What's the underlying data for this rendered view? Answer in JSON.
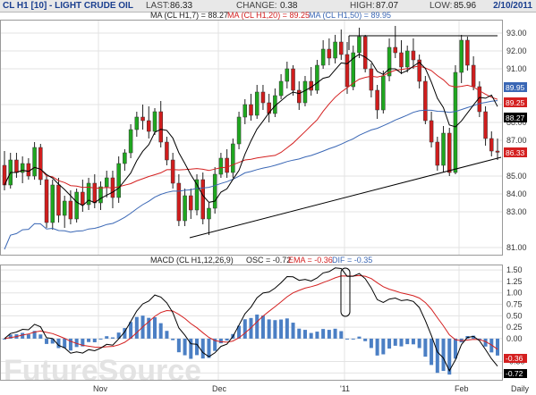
{
  "header": {
    "title": "CL H1 [10] - LIGHT CRUDE OIL",
    "last_label": "LAST:",
    "last_value": "86.33",
    "change_label": "CHANGE:",
    "change_value": "0.38",
    "high_label": "HIGH:",
    "high_value": "87.07",
    "low_label": "LOW:",
    "low_value": "85.96",
    "date": "2/10/2011"
  },
  "legend": {
    "ma7": "MA (CL H1,7) = 88.27",
    "ma20": "MA (CL H1,20) = 89.25",
    "ma50": "MA (CL H1,50) = 89.95"
  },
  "macd_legend": {
    "macd": "MACD (CL H1,12,26,9)",
    "osc": "OSC = -0.72",
    "ema": "EMA = -0.36",
    "dif": "DIF = -0.35"
  },
  "x_labels": [
    "Nov",
    "Dec",
    "'11",
    "Feb",
    "Daily"
  ],
  "price_ticks": [
    "93.00",
    "92.00",
    "91.00",
    "89.00",
    "88.00",
    "87.00",
    "85.00",
    "84.00",
    "83.00",
    "81.00"
  ],
  "macd_ticks": [
    "1.50",
    "1.25",
    "1.00",
    "0.75",
    "0.50",
    "0.25",
    "0.00",
    "-0.50",
    "-0.75"
  ],
  "tags": {
    "ma50": "89.95",
    "ma20": "89.25",
    "ma7": "88.27",
    "last": "86.33",
    "ema": "-0.36",
    "osc": "-0.72"
  },
  "colors": {
    "up": "#1fa71f",
    "down": "#d01d1d",
    "ma7": "#000000",
    "ma20": "#d42020",
    "ma50": "#3a67b5",
    "histogram": "#4b7fc4",
    "header_bg": "#e8e8e8"
  },
  "watermark": "FutureSource",
  "chart_data": [
    {
      "type": "candlestick",
      "title": "CL H1 [10] - LIGHT CRUDE OIL",
      "ylim": [
        80.6,
        93.7
      ],
      "x_labels": [
        "Nov",
        "Dec",
        "'11",
        "Feb"
      ],
      "series": [
        {
          "name": "MA (CL H1,7)",
          "last": 88.27
        },
        {
          "name": "MA (CL H1,20)",
          "last": 89.25
        },
        {
          "name": "MA (CL H1,50)",
          "last": 89.95
        }
      ],
      "ohlc_approx": [
        [
          85.6,
          86.4,
          84.2,
          84.5
        ],
        [
          84.5,
          86.3,
          84.3,
          85.9
        ],
        [
          85.9,
          86.3,
          84.9,
          85.2
        ],
        [
          85.2,
          86.1,
          84.6,
          85.7
        ],
        [
          85.7,
          86.0,
          84.8,
          85.0
        ],
        [
          85.0,
          86.9,
          84.8,
          86.6
        ],
        [
          86.6,
          86.8,
          84.5,
          84.8
        ],
        [
          84.8,
          85.0,
          82.1,
          82.4
        ],
        [
          82.4,
          84.8,
          82.0,
          84.5
        ],
        [
          84.5,
          84.9,
          82.4,
          82.8
        ],
        [
          82.8,
          83.9,
          82.1,
          83.6
        ],
        [
          83.6,
          84.2,
          82.3,
          82.6
        ],
        [
          82.6,
          84.3,
          82.4,
          84.1
        ],
        [
          84.1,
          84.8,
          83.0,
          83.4
        ],
        [
          83.4,
          84.9,
          83.1,
          84.6
        ],
        [
          84.6,
          85.1,
          83.2,
          83.5
        ],
        [
          83.5,
          84.7,
          83.1,
          84.4
        ],
        [
          84.4,
          85.3,
          83.8,
          84.9
        ],
        [
          84.9,
          85.3,
          83.2,
          83.8
        ],
        [
          83.8,
          86.1,
          83.5,
          85.7
        ],
        [
          85.7,
          86.5,
          85.3,
          86.3
        ],
        [
          86.3,
          87.9,
          86.0,
          87.6
        ],
        [
          87.6,
          88.6,
          87.2,
          88.3
        ],
        [
          88.3,
          89.0,
          87.6,
          88.1
        ],
        [
          88.1,
          88.9,
          87.1,
          87.5
        ],
        [
          87.5,
          88.8,
          87.3,
          88.6
        ],
        [
          88.6,
          89.2,
          86.6,
          86.9
        ],
        [
          86.9,
          87.2,
          85.6,
          85.9
        ],
        [
          85.9,
          86.3,
          84.3,
          84.6
        ],
        [
          84.6,
          85.1,
          82.2,
          82.5
        ],
        [
          82.5,
          84.3,
          82.2,
          83.9
        ],
        [
          83.9,
          84.3,
          82.6,
          83.1
        ],
        [
          83.1,
          85.1,
          82.8,
          84.8
        ],
        [
          84.8,
          85.2,
          82.3,
          82.6
        ],
        [
          82.6,
          83.5,
          81.7,
          83.2
        ],
        [
          83.2,
          85.5,
          82.9,
          85.1
        ],
        [
          85.1,
          86.3,
          84.9,
          86.0
        ],
        [
          86.0,
          86.5,
          84.9,
          85.2
        ],
        [
          85.2,
          87.1,
          84.9,
          86.8
        ],
        [
          86.8,
          88.6,
          86.5,
          88.3
        ],
        [
          88.3,
          89.3,
          87.9,
          89.0
        ],
        [
          89.0,
          89.6,
          88.1,
          88.4
        ],
        [
          88.4,
          90.1,
          88.2,
          89.7
        ],
        [
          89.7,
          90.1,
          88.7,
          89.1
        ],
        [
          89.1,
          89.6,
          88.0,
          88.5
        ],
        [
          88.5,
          89.9,
          88.3,
          89.5
        ],
        [
          89.5,
          90.7,
          89.3,
          90.3
        ],
        [
          90.3,
          91.4,
          89.9,
          91.0
        ],
        [
          91.0,
          91.2,
          89.5,
          89.8
        ],
        [
          89.8,
          90.3,
          88.7,
          89.1
        ],
        [
          89.1,
          90.6,
          88.9,
          90.3
        ],
        [
          90.3,
          91.1,
          89.5,
          89.8
        ],
        [
          89.8,
          91.5,
          89.6,
          91.2
        ],
        [
          91.2,
          92.6,
          91.0,
          92.1
        ],
        [
          92.1,
          92.7,
          91.2,
          91.6
        ],
        [
          91.6,
          92.9,
          91.3,
          92.5
        ],
        [
          92.5,
          93.2,
          91.5,
          91.8
        ],
        [
          91.8,
          92.5,
          89.6,
          90.0
        ],
        [
          90.0,
          92.3,
          89.8,
          91.9
        ],
        [
          91.9,
          93.3,
          91.6,
          92.8
        ],
        [
          92.8,
          92.9,
          90.8,
          91.0
        ],
        [
          91.0,
          91.3,
          89.4,
          89.8
        ],
        [
          89.8,
          90.1,
          88.2,
          88.7
        ],
        [
          88.7,
          90.9,
          88.5,
          90.6
        ],
        [
          90.6,
          92.7,
          90.3,
          92.2
        ],
        [
          92.2,
          93.4,
          91.6,
          91.9
        ],
        [
          91.9,
          92.6,
          90.7,
          91.1
        ],
        [
          91.1,
          92.3,
          90.8,
          92.0
        ],
        [
          92.0,
          92.7,
          91.0,
          91.5
        ],
        [
          91.5,
          91.8,
          89.9,
          90.3
        ],
        [
          90.3,
          90.6,
          87.9,
          88.1
        ],
        [
          88.1,
          88.6,
          86.6,
          86.9
        ],
        [
          86.9,
          87.2,
          85.3,
          85.6
        ],
        [
          85.6,
          87.8,
          85.2,
          87.4
        ],
        [
          87.4,
          87.7,
          85.0,
          85.2
        ],
        [
          85.2,
          91.2,
          85.1,
          90.8
        ],
        [
          90.8,
          92.9,
          90.2,
          92.6
        ],
        [
          92.6,
          92.8,
          90.9,
          91.2
        ],
        [
          91.2,
          91.7,
          89.8,
          90.0
        ],
        [
          90.0,
          90.3,
          88.3,
          88.6
        ],
        [
          88.6,
          88.9,
          86.7,
          87.1
        ],
        [
          87.1,
          87.5,
          86.1,
          86.4
        ],
        [
          86.4,
          87.1,
          85.9,
          86.33
        ]
      ]
    },
    {
      "type": "macd",
      "title": "MACD (CL H1,12,26,9)",
      "ylim": [
        -0.9,
        1.6
      ],
      "values": {
        "osc": -0.72,
        "ema": -0.36,
        "dif": -0.35
      }
    }
  ]
}
